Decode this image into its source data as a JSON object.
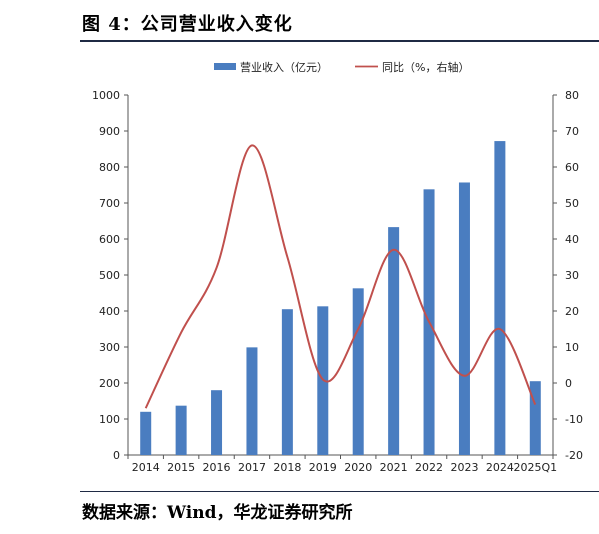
{
  "header": {
    "figure_title": "图 4：公司营业收入变化"
  },
  "footer": {
    "source": "数据来源：Wind，华龙证券研究所"
  },
  "chart_data": {
    "type": "bar",
    "categories": [
      "2014",
      "2015",
      "2016",
      "2017",
      "2018",
      "2019",
      "2020",
      "2021",
      "2022",
      "2023",
      "2024",
      "2025Q1"
    ],
    "series": [
      {
        "name": "营业收入（亿元）",
        "type": "bar",
        "axis": "left",
        "color": "#4a7dc0",
        "values": [
          120,
          137,
          180,
          299,
          405,
          413,
          463,
          633,
          738,
          757,
          872,
          205
        ]
      },
      {
        "name": "同比（%，右轴）",
        "type": "line",
        "axis": "right",
        "color": "#c0504d",
        "values": [
          -7,
          14,
          32,
          66,
          35,
          1,
          15,
          37,
          17,
          2,
          15,
          -6
        ]
      }
    ],
    "y_left": {
      "ylim": [
        0,
        1000
      ],
      "ticks": [
        "0",
        "100",
        "200",
        "300",
        "400",
        "500",
        "600",
        "700",
        "800",
        "900",
        "1000"
      ]
    },
    "y_right": {
      "ylim": [
        -20,
        80
      ],
      "ticks": [
        "-20",
        "-10",
        "0",
        "10",
        "20",
        "30",
        "40",
        "50",
        "60",
        "70",
        "80"
      ]
    },
    "legend_position": "top",
    "grid": false
  }
}
